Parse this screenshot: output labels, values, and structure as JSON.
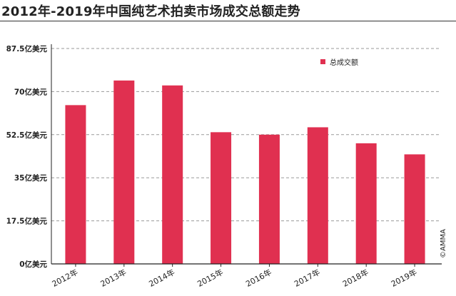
{
  "chart_data": {
    "type": "bar",
    "title": "2012年-2019年中国纯艺术拍卖市场成交总额走势",
    "categories": [
      "2012年",
      "2013年",
      "2014年",
      "2015年",
      "2016年",
      "2017年",
      "2018年",
      "2019年"
    ],
    "series": [
      {
        "name": "总成交额",
        "color": "#e03050",
        "values": [
          64.5,
          74.5,
          72.5,
          53.5,
          52.5,
          55.5,
          49,
          44.5
        ]
      }
    ],
    "y_ticks": [
      0,
      17.5,
      35,
      52.5,
      70,
      87.5
    ],
    "y_tick_labels": [
      "0亿美元",
      "17.5亿美元",
      "35亿美元",
      "52.5亿美元",
      "70亿美元",
      "87.5亿美元"
    ],
    "ylim": [
      0,
      87.5
    ],
    "xlabel": "",
    "ylabel": "",
    "grid": true,
    "grid_style": "dashed",
    "legend_position": "top-right",
    "source_note": "©AMMA",
    "colors": {
      "bar": "#e03050",
      "grid": "#9a9a9a",
      "axis": "#222222",
      "title_rule": "#333333"
    }
  }
}
